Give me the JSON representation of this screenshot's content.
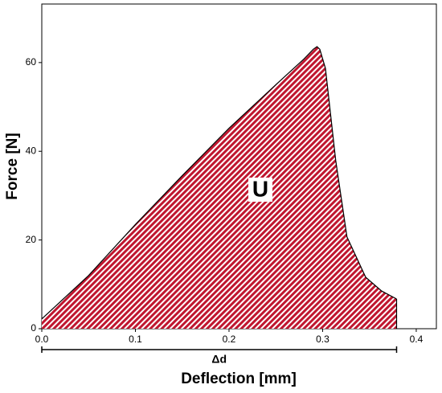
{
  "chart_data": {
    "type": "area",
    "x_label": "Deflection [mm]",
    "y_label": "Force [N]",
    "annotation": "U",
    "dimension_label": "Δd",
    "x": [
      0,
      0.05,
      0.1,
      0.15,
      0.2,
      0.25,
      0.28,
      0.29,
      0.294,
      0.297,
      0.303,
      0.314,
      0.326,
      0.346,
      0.363,
      0.379
    ],
    "values": [
      2.2,
      12,
      23.5,
      34.5,
      45.2,
      55,
      60.8,
      63,
      63.6,
      63,
      58.7,
      37.9,
      20.7,
      11.6,
      8.5,
      6.7
    ],
    "color": "#c0162f",
    "xlim": [
      0,
      0.4215
    ],
    "ylim": [
      0,
      73.2
    ],
    "xticks": [
      {
        "value": 0,
        "label": "0.0"
      },
      0.1,
      0.2,
      0.3,
      0.4
    ],
    "yticks": [
      0,
      20,
      40,
      60
    ]
  }
}
